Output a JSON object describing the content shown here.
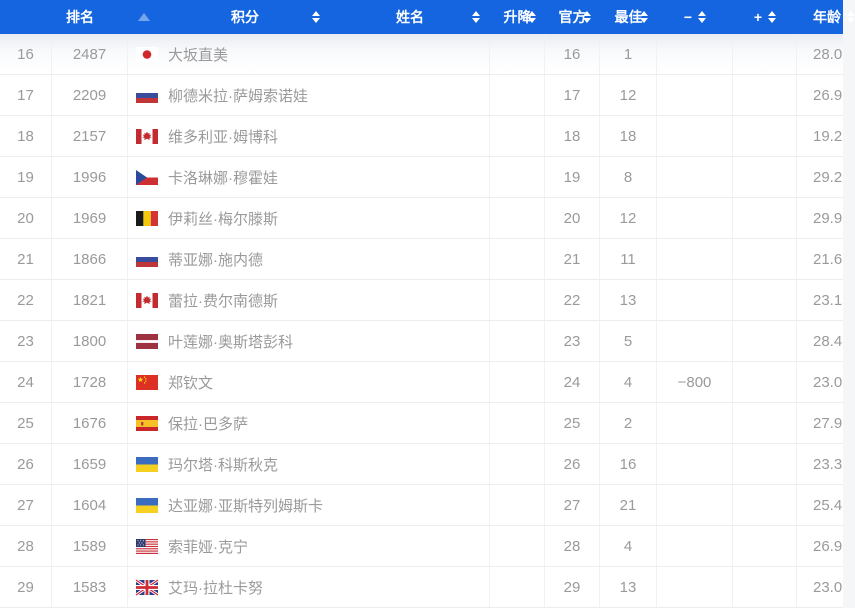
{
  "colors": {
    "accent": "#1565e0",
    "header_text": "#ffffff",
    "body_text": "#9a9a9a",
    "grid_line": "#f0f0f0"
  },
  "table": {
    "columns": [
      {
        "key": "rank",
        "label": "排名",
        "sort": "asc-active"
      },
      {
        "key": "points",
        "label": "积分",
        "sort": "both"
      },
      {
        "key": "name",
        "label": "姓名",
        "sort": "both"
      },
      {
        "key": "change",
        "label": "升降",
        "sort": "both"
      },
      {
        "key": "official",
        "label": "官方",
        "sort": "both"
      },
      {
        "key": "best",
        "label": "最佳",
        "sort": "both"
      },
      {
        "key": "minus",
        "label": "−",
        "sort": "both"
      },
      {
        "key": "plus",
        "label": "+",
        "sort": "both"
      },
      {
        "key": "age",
        "label": "年龄",
        "sort": "both"
      }
    ],
    "rows": [
      {
        "rank": "16",
        "points": "2487",
        "flag": "jp",
        "name": "大坂直美",
        "change": "",
        "official": "16",
        "best": "1",
        "minus": "",
        "plus": "",
        "age": "28.0"
      },
      {
        "rank": "17",
        "points": "2209",
        "flag": "ru",
        "name": "柳德米拉·萨姆索诺娃",
        "change": "",
        "official": "17",
        "best": "12",
        "minus": "",
        "plus": "",
        "age": "26.9"
      },
      {
        "rank": "18",
        "points": "2157",
        "flag": "ca",
        "name": "维多利亚·姆博科",
        "change": "",
        "official": "18",
        "best": "18",
        "minus": "",
        "plus": "",
        "age": "19.2"
      },
      {
        "rank": "19",
        "points": "1996",
        "flag": "cz",
        "name": "卡洛琳娜·穆霍娃",
        "change": "",
        "official": "19",
        "best": "8",
        "minus": "",
        "plus": "",
        "age": "29.2"
      },
      {
        "rank": "20",
        "points": "1969",
        "flag": "be",
        "name": "伊莉丝·梅尔滕斯",
        "change": "",
        "official": "20",
        "best": "12",
        "minus": "",
        "plus": "",
        "age": "29.9"
      },
      {
        "rank": "21",
        "points": "1866",
        "flag": "ru",
        "name": "蒂亚娜·施内德",
        "change": "",
        "official": "21",
        "best": "11",
        "minus": "",
        "plus": "",
        "age": "21.6"
      },
      {
        "rank": "22",
        "points": "1821",
        "flag": "ca",
        "name": "蕾拉·费尔南德斯",
        "change": "",
        "official": "22",
        "best": "13",
        "minus": "",
        "plus": "",
        "age": "23.1"
      },
      {
        "rank": "23",
        "points": "1800",
        "flag": "lv",
        "name": "叶莲娜·奥斯塔彭科",
        "change": "",
        "official": "23",
        "best": "5",
        "minus": "",
        "plus": "",
        "age": "28.4"
      },
      {
        "rank": "24",
        "points": "1728",
        "flag": "cn",
        "name": "郑钦文",
        "change": "",
        "official": "24",
        "best": "4",
        "minus": "−800",
        "plus": "",
        "age": "23.0"
      },
      {
        "rank": "25",
        "points": "1676",
        "flag": "es",
        "name": "保拉·巴多萨",
        "change": "",
        "official": "25",
        "best": "2",
        "minus": "",
        "plus": "",
        "age": "27.9"
      },
      {
        "rank": "26",
        "points": "1659",
        "flag": "ua",
        "name": "玛尔塔·科斯秋克",
        "change": "",
        "official": "26",
        "best": "16",
        "minus": "",
        "plus": "",
        "age": "23.3"
      },
      {
        "rank": "27",
        "points": "1604",
        "flag": "ua",
        "name": "达亚娜·亚斯特列姆斯卡",
        "change": "",
        "official": "27",
        "best": "21",
        "minus": "",
        "plus": "",
        "age": "25.4"
      },
      {
        "rank": "28",
        "points": "1589",
        "flag": "us",
        "name": "索菲娅·克宁",
        "change": "",
        "official": "28",
        "best": "4",
        "minus": "",
        "plus": "",
        "age": "26.9"
      },
      {
        "rank": "29",
        "points": "1583",
        "flag": "gb",
        "name": "艾玛·拉杜卡努",
        "change": "",
        "official": "29",
        "best": "13",
        "minus": "",
        "plus": "",
        "age": "23.0"
      }
    ]
  }
}
